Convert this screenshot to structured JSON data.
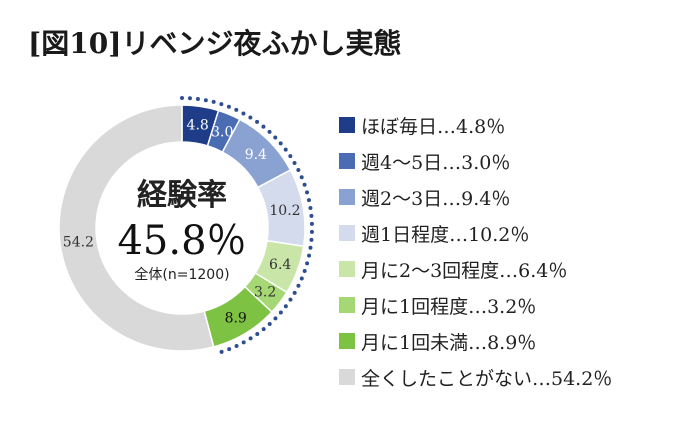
{
  "chart_data": {
    "type": "pie",
    "title": "[図10]リベンジ夜ふかし実態",
    "center": {
      "title": "経験率",
      "value": "45.8％",
      "subtitle": "全体(n=1200)"
    },
    "categories": [
      "ほぼ毎日",
      "週4〜5日",
      "週2〜3日",
      "週1日程度",
      "月に2〜3回程度",
      "月に1回程度",
      "月に1回未満",
      "全くしたことがない"
    ],
    "values": [
      4.8,
      3.0,
      9.4,
      10.2,
      6.4,
      3.2,
      8.9,
      54.2
    ],
    "value_labels": [
      "4.8",
      "3.0",
      "9.4",
      "10.2",
      "6.4",
      "3.2",
      "8.9",
      "54.2"
    ],
    "legend_labels": [
      "ほぼ毎日…4.8％",
      "週4〜5日…3.0％",
      "週2〜3日…9.4％",
      "週1日程度…10.2％",
      "月に2〜3回程度…6.4％",
      "月に1回程度…3.2％",
      "月に1回未満…8.9％",
      "全くしたことがない…54.2％"
    ],
    "colors": [
      "#1f3c88",
      "#4a6cb3",
      "#8aa2d2",
      "#d3dbed",
      "#c9e6a8",
      "#a6d775",
      "#7dc242",
      "#d9d9d9"
    ],
    "label_colors": [
      "#ffffff",
      "#ffffff",
      "#ffffff",
      "#333333",
      "#333333",
      "#333333",
      "#111111",
      "#333333"
    ],
    "legend_position": "right"
  }
}
